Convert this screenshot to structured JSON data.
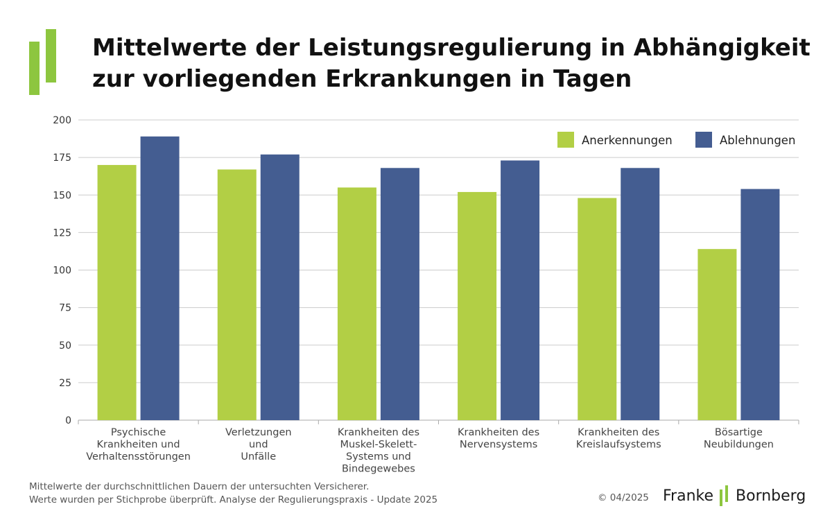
{
  "title": {
    "line1": "Mittelwerte der Leistungsregulierung in Abhängigkeit",
    "line2": "zur vorliegenden Erkrankungen in Tagen"
  },
  "colors": {
    "anerkennungen": "#b2cf45",
    "ablehnungen": "#445d91",
    "logo_green": "#8dc63f",
    "grid": "#cccccc"
  },
  "chart_data": {
    "type": "bar",
    "categories": [
      [
        "Psychische",
        "Krankheiten und",
        "Verhaltensstörungen"
      ],
      [
        "Verletzungen",
        "und",
        "Unfälle"
      ],
      [
        "Krankheiten des",
        "Muskel-Skelett-",
        "Systems und",
        "Bindegewebes"
      ],
      [
        "Krankheiten des",
        "Nervensystems"
      ],
      [
        "Krankheiten des",
        "Kreislaufsystems"
      ],
      [
        "Bösartige",
        "Neubildungen"
      ]
    ],
    "series": [
      {
        "name": "Anerkennungen",
        "values": [
          170,
          167,
          155,
          152,
          148,
          114
        ]
      },
      {
        "name": "Ablehnungen",
        "values": [
          189,
          177,
          168,
          173,
          168,
          154
        ]
      }
    ],
    "y_ticks": [
      "0",
      "25",
      "50",
      "75",
      "100",
      "125",
      "150",
      "175",
      "200"
    ],
    "ylim": [
      0,
      200
    ],
    "grid": true,
    "legend_position": "top-right"
  },
  "footnote": {
    "line1": "Mittelwerte der durchschnittlichen Dauern der untersuchten Versicherer.",
    "line2": "Werte wurden per Stichprobe überprüft. Analyse der Regulierungspraxis - Update 2025"
  },
  "copyright": "© 04/2025",
  "brand": {
    "left": "Franke",
    "right": "Bornberg"
  }
}
